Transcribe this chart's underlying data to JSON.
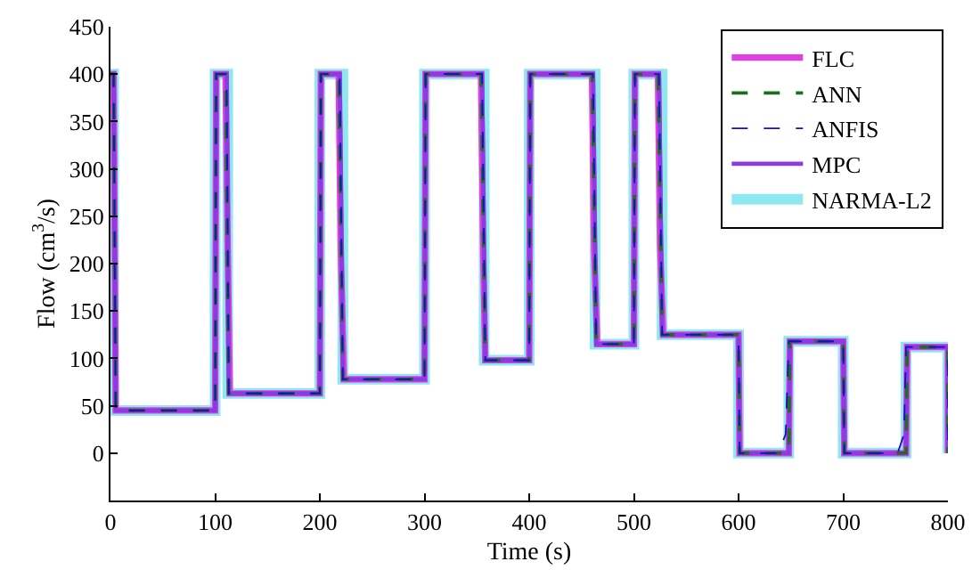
{
  "chart_data": {
    "type": "line",
    "xlabel": "Time (s)",
    "ylabel": "Flow (cm$^{3}$/s)",
    "xlim": [
      0,
      800
    ],
    "xticks": [
      0,
      100,
      200,
      300,
      400,
      500,
      600,
      700,
      800
    ],
    "ylim": [
      -50,
      450
    ],
    "yticks": [
      0,
      50,
      100,
      150,
      200,
      250,
      300,
      350,
      400,
      450
    ],
    "legend": "top right",
    "marker": "none",
    "series": [
      {
        "name": "FLC",
        "color": "#e040e0",
        "line_style": "solid",
        "x": [
          0,
          3,
          5,
          100,
          101,
          110,
          112,
          114,
          200,
          201,
          218,
          220,
          223,
          300,
          301,
          354,
          356,
          358,
          400,
          401,
          460,
          462,
          465,
          500,
          501,
          523,
          525,
          528,
          600,
          601,
          648,
          649,
          700,
          701,
          760,
          761,
          800,
          800
        ],
        "values": [
          400,
          400,
          45,
          45,
          400,
          400,
          215,
          63,
          63,
          400,
          400,
          215,
          78,
          78,
          400,
          400,
          215,
          98,
          98,
          400,
          400,
          215,
          115,
          115,
          400,
          400,
          220,
          125,
          125,
          0,
          0,
          118,
          118,
          0,
          0,
          112,
          112,
          0
        ]
      },
      {
        "name": "ANN",
        "color": "#1e6e1e",
        "line_style": "dashed",
        "x": [
          0,
          3,
          5,
          100,
          101,
          110,
          113,
          200,
          201,
          218,
          222,
          300,
          301,
          354,
          358,
          400,
          401,
          460,
          464,
          500,
          501,
          523,
          527,
          600,
          601,
          648,
          649,
          700,
          701,
          760,
          761,
          800,
          800
        ],
        "values": [
          400,
          400,
          45,
          45,
          400,
          400,
          63,
          63,
          400,
          400,
          78,
          78,
          400,
          400,
          98,
          98,
          400,
          400,
          115,
          115,
          400,
          400,
          125,
          125,
          0,
          0,
          118,
          118,
          0,
          0,
          112,
          112,
          0
        ]
      },
      {
        "name": "ANFIS",
        "color": "#1010d0",
        "line_style": "dashed",
        "x": [
          0,
          3,
          5,
          100,
          101,
          111,
          113,
          200,
          201,
          219,
          222,
          300,
          301,
          355,
          358,
          400,
          401,
          461,
          464,
          500,
          501,
          524,
          527,
          600,
          601,
          638,
          645,
          648,
          700,
          701,
          752,
          758,
          760,
          800,
          800
        ],
        "values": [
          400,
          400,
          45,
          45,
          400,
          400,
          63,
          63,
          400,
          400,
          78,
          78,
          400,
          400,
          98,
          98,
          400,
          400,
          115,
          115,
          400,
          400,
          125,
          125,
          0,
          0,
          20,
          118,
          118,
          0,
          0,
          20,
          112,
          112,
          0
        ]
      },
      {
        "name": "MPC",
        "color": "#8a3ce0",
        "line_style": "solid",
        "x": [
          0,
          3,
          5,
          100,
          101,
          111,
          113,
          200,
          201,
          219,
          222,
          300,
          301,
          355,
          358,
          400,
          401,
          461,
          464,
          500,
          501,
          524,
          527,
          600,
          601,
          648,
          649,
          700,
          701,
          760,
          761,
          800,
          800
        ],
        "values": [
          400,
          400,
          45,
          45,
          400,
          400,
          63,
          63,
          400,
          400,
          78,
          78,
          400,
          400,
          98,
          98,
          400,
          400,
          115,
          115,
          400,
          400,
          125,
          125,
          0,
          0,
          118,
          118,
          0,
          0,
          112,
          112,
          0
        ]
      },
      {
        "name": "NARMA-L2",
        "color": "#8fe8f0",
        "line_style": "solid",
        "x": [
          0,
          3,
          3,
          100,
          100,
          112,
          112,
          200,
          200,
          222,
          222,
          300,
          300,
          357,
          357,
          400,
          400,
          463,
          463,
          500,
          500,
          527,
          527,
          600,
          600,
          648,
          648,
          700,
          700,
          760,
          760,
          800,
          800
        ],
        "values": [
          400,
          400,
          45,
          45,
          400,
          400,
          63,
          63,
          400,
          400,
          78,
          78,
          400,
          400,
          98,
          98,
          400,
          400,
          115,
          115,
          400,
          400,
          125,
          125,
          0,
          0,
          118,
          118,
          0,
          0,
          112,
          112,
          0
        ]
      }
    ]
  }
}
